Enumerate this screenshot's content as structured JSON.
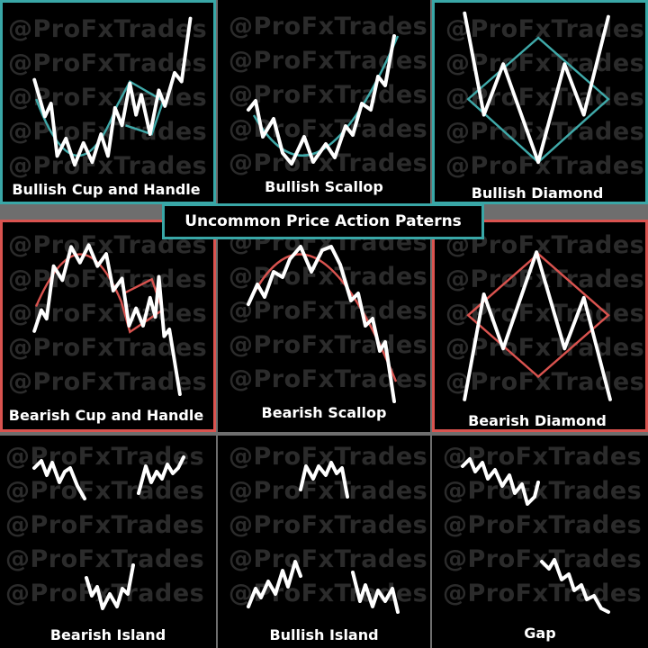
{
  "title": "Uncommon Price Action Paterns",
  "watermark": "@ProFxTrades",
  "colors": {
    "bullish": "#39a7a7",
    "bearish": "#d9534f",
    "price_line": "#ffffff",
    "background": "#000000"
  },
  "panels": [
    {
      "label": "Bullish Cup and Handle"
    },
    {
      "label": "Bullish Scallop"
    },
    {
      "label": "Bullish Diamond"
    },
    {
      "label": "Bearish Cup and Handle"
    },
    {
      "label": "Bearish Scallop"
    },
    {
      "label": "Bearish Diamond"
    },
    {
      "label": "Bearish Island"
    },
    {
      "label": "Bullish Island"
    },
    {
      "label": "Gap"
    }
  ]
}
